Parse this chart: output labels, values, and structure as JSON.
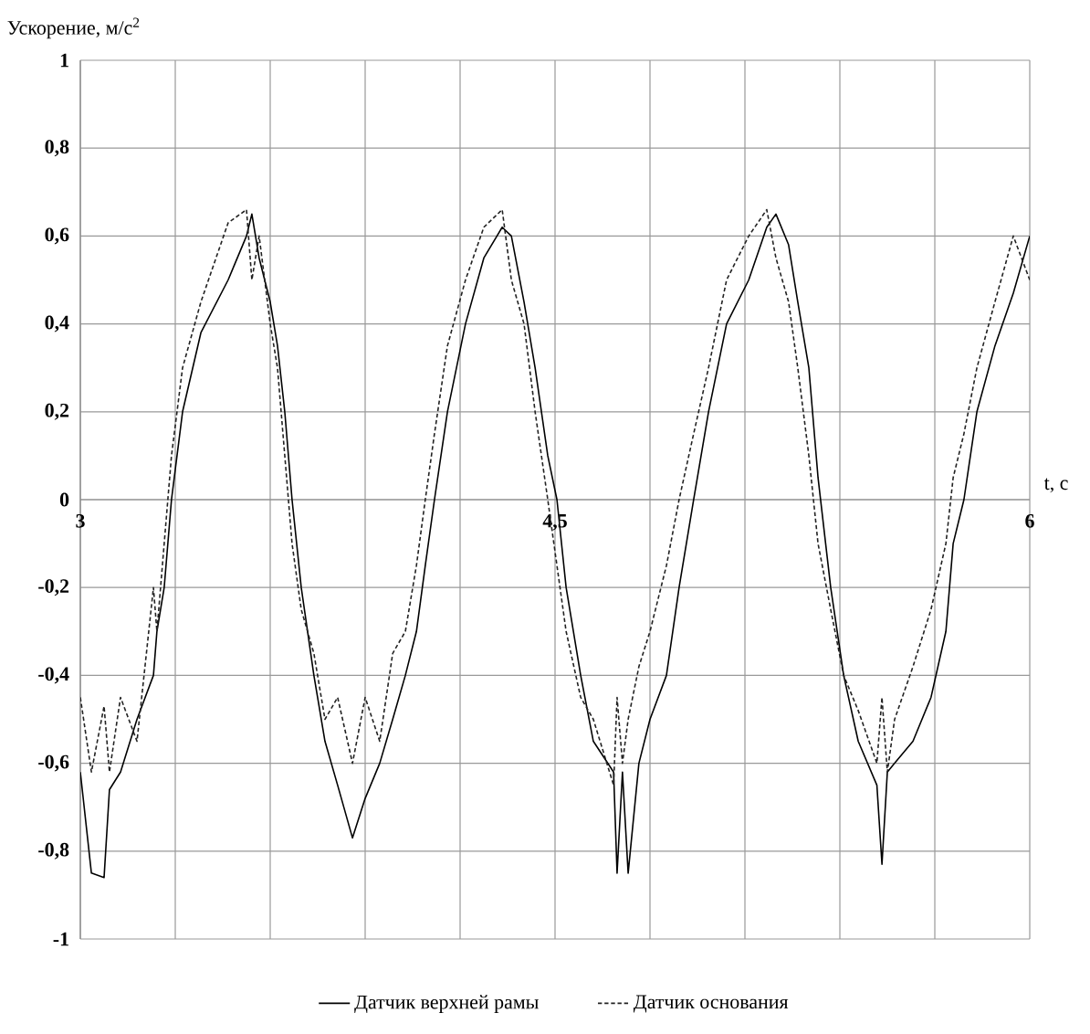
{
  "chart_data": {
    "type": "line",
    "ylabel": "Ускорение, м/с$^{2}$",
    "xlabel": "t, c",
    "xlim": [
      3,
      6
    ],
    "ylim": [
      -1,
      1
    ],
    "xticks": [
      3,
      {
        "value": 3.3,
        "label": null
      },
      {
        "value": 3.6,
        "label": null
      },
      {
        "value": 3.9,
        "label": null
      },
      {
        "value": 4.2,
        "label": null
      },
      {
        "value": 4.5,
        "label": "4,5"
      },
      {
        "value": 4.8,
        "label": null
      },
      {
        "value": 5.1,
        "label": null
      },
      {
        "value": 5.4,
        "label": null
      },
      {
        "value": 5.7,
        "label": null
      },
      6
    ],
    "yticks": [
      -1,
      {
        "value": -0.8,
        "label": "-0,8"
      },
      {
        "value": -0.6,
        "label": "-0,6"
      },
      {
        "value": -0.4,
        "label": "-0,4"
      },
      {
        "value": -0.2,
        "label": "-0,2"
      },
      0,
      {
        "value": 0.2,
        "label": "0,2"
      },
      {
        "value": 0.4,
        "label": "0,4"
      },
      {
        "value": 0.6,
        "label": "0,6"
      },
      {
        "value": 0.8,
        "label": "0,8"
      },
      1
    ],
    "grid": true,
    "legend": "bottom",
    "marker": "none",
    "series": [
      {
        "name": "Датчик верхней рамы",
        "color": "#000000",
        "line_style": "solid",
        "x": [
          3.0,
          3.035,
          3.075,
          3.092,
          3.127,
          3.179,
          3.231,
          3.242,
          3.265,
          3.288,
          3.323,
          3.381,
          3.467,
          3.525,
          3.542,
          3.565,
          3.6,
          3.623,
          3.646,
          3.669,
          3.698,
          3.738,
          3.773,
          3.813,
          3.86,
          3.9,
          3.946,
          3.987,
          4.027,
          4.062,
          4.09,
          4.119,
          4.16,
          4.217,
          4.275,
          4.333,
          4.362,
          4.402,
          4.437,
          4.477,
          4.506,
          4.535,
          4.581,
          4.621,
          4.685,
          4.696,
          4.713,
          4.731,
          4.765,
          4.8,
          4.852,
          4.892,
          4.938,
          4.985,
          5.042,
          5.112,
          5.169,
          5.198,
          5.238,
          5.267,
          5.302,
          5.331,
          5.371,
          5.412,
          5.458,
          5.517,
          5.533,
          5.55,
          5.573,
          5.631,
          5.688,
          5.735,
          5.758,
          5.792,
          5.833,
          5.89,
          5.948,
          6.0
        ],
        "values": [
          -0.62,
          -0.85,
          -0.86,
          -0.66,
          -0.62,
          -0.5,
          -0.4,
          -0.3,
          -0.2,
          0,
          0.2,
          0.38,
          0.5,
          0.6,
          0.65,
          0.55,
          0.45,
          0.35,
          0.2,
          0,
          -0.2,
          -0.4,
          -0.55,
          -0.65,
          -0.77,
          -0.68,
          -0.6,
          -0.5,
          -0.4,
          -0.3,
          -0.15,
          0,
          0.2,
          0.4,
          0.55,
          0.62,
          0.6,
          0.45,
          0.3,
          0.1,
          0,
          -0.2,
          -0.4,
          -0.55,
          -0.62,
          -0.85,
          -0.62,
          -0.85,
          -0.6,
          -0.5,
          -0.4,
          -0.2,
          0,
          0.2,
          0.4,
          0.5,
          0.62,
          0.65,
          0.58,
          0.45,
          0.3,
          0.05,
          -0.2,
          -0.4,
          -0.55,
          -0.65,
          -0.83,
          -0.62,
          -0.6,
          -0.55,
          -0.45,
          -0.3,
          -0.1,
          0,
          0.2,
          0.35,
          0.47,
          0.6
        ]
      },
      {
        "name": "Датчик основания",
        "color": "#222222",
        "line_style": "dashed",
        "x": [
          3.0,
          3.035,
          3.075,
          3.092,
          3.127,
          3.179,
          3.231,
          3.242,
          3.265,
          3.288,
          3.323,
          3.381,
          3.467,
          3.525,
          3.542,
          3.565,
          3.6,
          3.623,
          3.646,
          3.669,
          3.698,
          3.738,
          3.773,
          3.813,
          3.86,
          3.9,
          3.946,
          3.987,
          4.027,
          4.062,
          4.09,
          4.119,
          4.16,
          4.217,
          4.275,
          4.333,
          4.362,
          4.402,
          4.437,
          4.477,
          4.506,
          4.535,
          4.581,
          4.621,
          4.685,
          4.696,
          4.713,
          4.731,
          4.765,
          4.8,
          4.852,
          4.892,
          4.938,
          4.985,
          5.042,
          5.112,
          5.169,
          5.198,
          5.238,
          5.267,
          5.302,
          5.331,
          5.371,
          5.412,
          5.458,
          5.517,
          5.533,
          5.55,
          5.573,
          5.631,
          5.688,
          5.735,
          5.758,
          5.792,
          5.833,
          5.89,
          5.948,
          6.0
        ],
        "values": [
          -0.45,
          -0.62,
          -0.47,
          -0.62,
          -0.45,
          -0.55,
          -0.2,
          -0.3,
          -0.1,
          0.1,
          0.3,
          0.45,
          0.63,
          0.66,
          0.5,
          0.6,
          0.4,
          0.3,
          0.1,
          -0.1,
          -0.25,
          -0.35,
          -0.5,
          -0.45,
          -0.6,
          -0.45,
          -0.55,
          -0.35,
          -0.3,
          -0.15,
          0,
          0.15,
          0.35,
          0.5,
          0.62,
          0.66,
          0.5,
          0.4,
          0.2,
          0,
          -0.15,
          -0.3,
          -0.45,
          -0.5,
          -0.65,
          -0.45,
          -0.6,
          -0.5,
          -0.38,
          -0.3,
          -0.15,
          0,
          0.15,
          0.3,
          0.5,
          0.6,
          0.66,
          0.55,
          0.45,
          0.3,
          0.1,
          -0.1,
          -0.25,
          -0.4,
          -0.48,
          -0.6,
          -0.45,
          -0.62,
          -0.5,
          -0.38,
          -0.25,
          -0.1,
          0.05,
          0.15,
          0.3,
          0.45,
          0.6,
          0.5
        ]
      }
    ]
  }
}
